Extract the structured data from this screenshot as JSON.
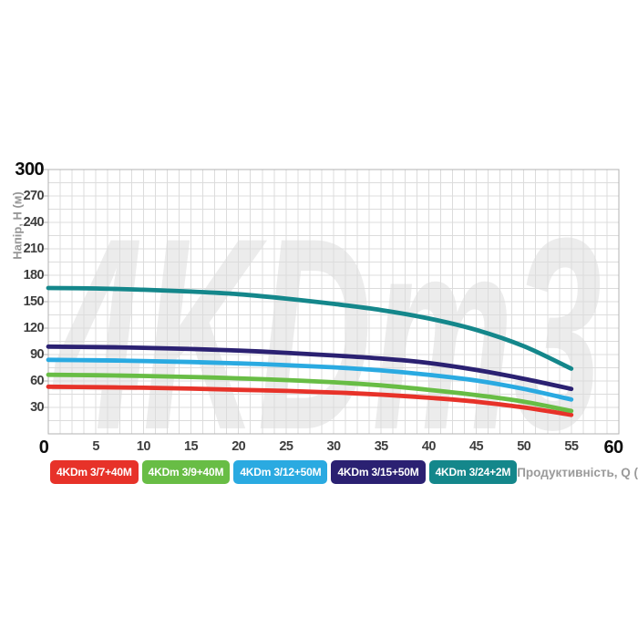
{
  "colors": {
    "background": "#ffffff",
    "watermark": "#ececec",
    "grid": "#dcdcdc",
    "axis_border": "#b3b3b3",
    "tick_label": "#3e3e3e",
    "tick_label_bold": "#0c0c0c",
    "axis_title": "#979797",
    "legend_text": "#ffffff"
  },
  "chart_data": {
    "type": "line",
    "watermark": "4KDm3",
    "xlabel": "Продуктивність, Q (л/хв)",
    "ylabel": "Напір, H (м)",
    "xlim": [
      0,
      60
    ],
    "ylim": [
      0,
      300
    ],
    "x_ticks": [
      0,
      5,
      10,
      15,
      20,
      25,
      30,
      35,
      40,
      45,
      50,
      55,
      60
    ],
    "y_ticks": [
      300,
      270,
      240,
      210,
      180,
      150,
      120,
      90,
      60,
      30
    ],
    "emphasized_ticks": {
      "x": [
        0,
        60
      ],
      "y": [
        300
      ]
    },
    "grid": {
      "on": true,
      "minor_x_step": 1.25,
      "minor_y_step": 15
    },
    "legend_position": "bottom",
    "x": [
      0,
      5,
      10,
      15,
      20,
      25,
      30,
      35,
      40,
      45,
      50,
      55
    ],
    "series": [
      {
        "name": "4KDm 3/7+40M",
        "color": "#e73229",
        "values": [
          53.5,
          53,
          52.3,
          51.3,
          50,
          48.7,
          47,
          44.5,
          41,
          36.5,
          30,
          21.5
        ]
      },
      {
        "name": "4KDm 3/9+40M",
        "color": "#68bd45",
        "values": [
          67,
          66.5,
          65.7,
          64.5,
          63,
          61,
          58.5,
          55,
          50,
          44,
          36.5,
          26
        ]
      },
      {
        "name": "4KDm 3/12+50M",
        "color": "#2aaae1",
        "values": [
          84,
          83.5,
          82.7,
          81.5,
          80,
          78,
          75.5,
          72,
          67,
          60.5,
          51,
          39
        ]
      },
      {
        "name": "4KDm 3/15+50M",
        "color": "#2b2172",
        "values": [
          99,
          98.5,
          97.7,
          96.3,
          94.5,
          92,
          89,
          85.5,
          80.5,
          72.5,
          62.5,
          51
        ]
      },
      {
        "name": "4KDm 3/24+2M",
        "color": "#14878b",
        "values": [
          165.5,
          165,
          163.5,
          161.5,
          158.5,
          153.5,
          147.5,
          140.5,
          131,
          118,
          99.5,
          74
        ]
      }
    ]
  }
}
